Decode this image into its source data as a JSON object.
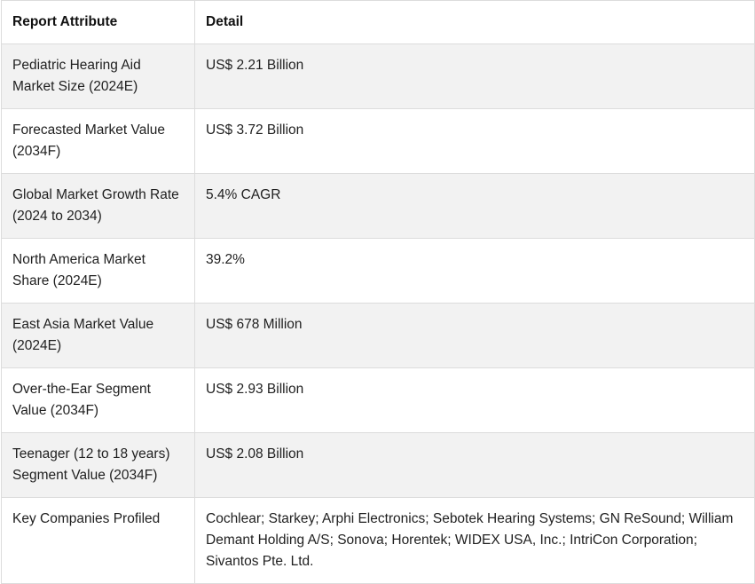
{
  "table": {
    "headers": [
      "Report Attribute",
      "Detail"
    ],
    "rows": [
      {
        "attribute": "Pediatric Hearing Aid Market Size (2024E)",
        "detail": "US$ 2.21 Billion"
      },
      {
        "attribute": "Forecasted Market Value (2034F)",
        "detail": "US$ 3.72 Billion"
      },
      {
        "attribute": "Global Market Growth Rate (2024 to 2034)",
        "detail": "5.4% CAGR"
      },
      {
        "attribute": "North America Market Share (2024E)",
        "detail": "39.2%"
      },
      {
        "attribute": "East Asia Market Value (2024E)",
        "detail": "US$ 678 Million"
      },
      {
        "attribute": "Over-the-Ear Segment Value (2034F)",
        "detail": "US$ 2.93 Billion"
      },
      {
        "attribute": "Teenager (12 to 18 years) Segment Value (2034F)",
        "detail": "US$ 2.08 Billion"
      },
      {
        "attribute": "Key Companies Profiled",
        "detail": "Cochlear; Starkey; Arphi Electronics; Sebotek Hearing Systems; GN ReSound; William Demant Holding A/S; Sonova; Horentek; WIDEX USA, Inc.; IntriCon Corporation; Sivantos Pte. Ltd."
      }
    ]
  }
}
